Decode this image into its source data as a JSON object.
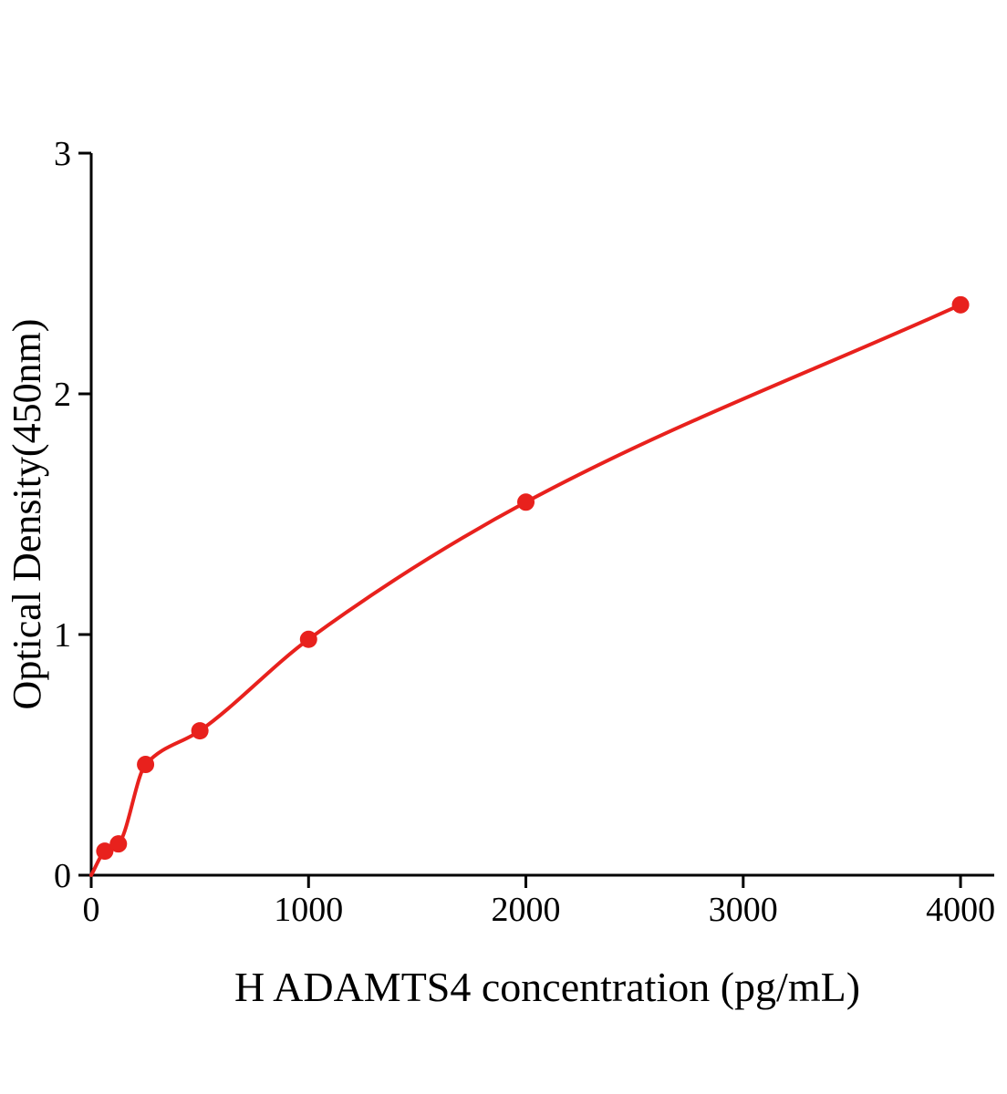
{
  "chart_data": {
    "type": "scatter",
    "title": "",
    "xlabel": "H ADAMTS4 concentration (pg/mL)",
    "ylabel": "Optical Density(450nm)",
    "x": [
      62.5,
      125,
      250,
      500,
      1000,
      2000,
      4000
    ],
    "y": [
      0.1,
      0.13,
      0.46,
      0.6,
      0.98,
      1.55,
      2.37
    ],
    "curve_origin": {
      "x": 0,
      "y": 0
    },
    "xlim": [
      0,
      4155
    ],
    "ylim": [
      0,
      3
    ],
    "x_ticks": [
      0,
      1000,
      2000,
      3000,
      4000
    ],
    "y_ticks": [
      0,
      1,
      2,
      3
    ],
    "grid": false,
    "legend": "none",
    "line_color": "#e8211d",
    "marker_color": "#e8211d",
    "axis_color": "#000000"
  }
}
